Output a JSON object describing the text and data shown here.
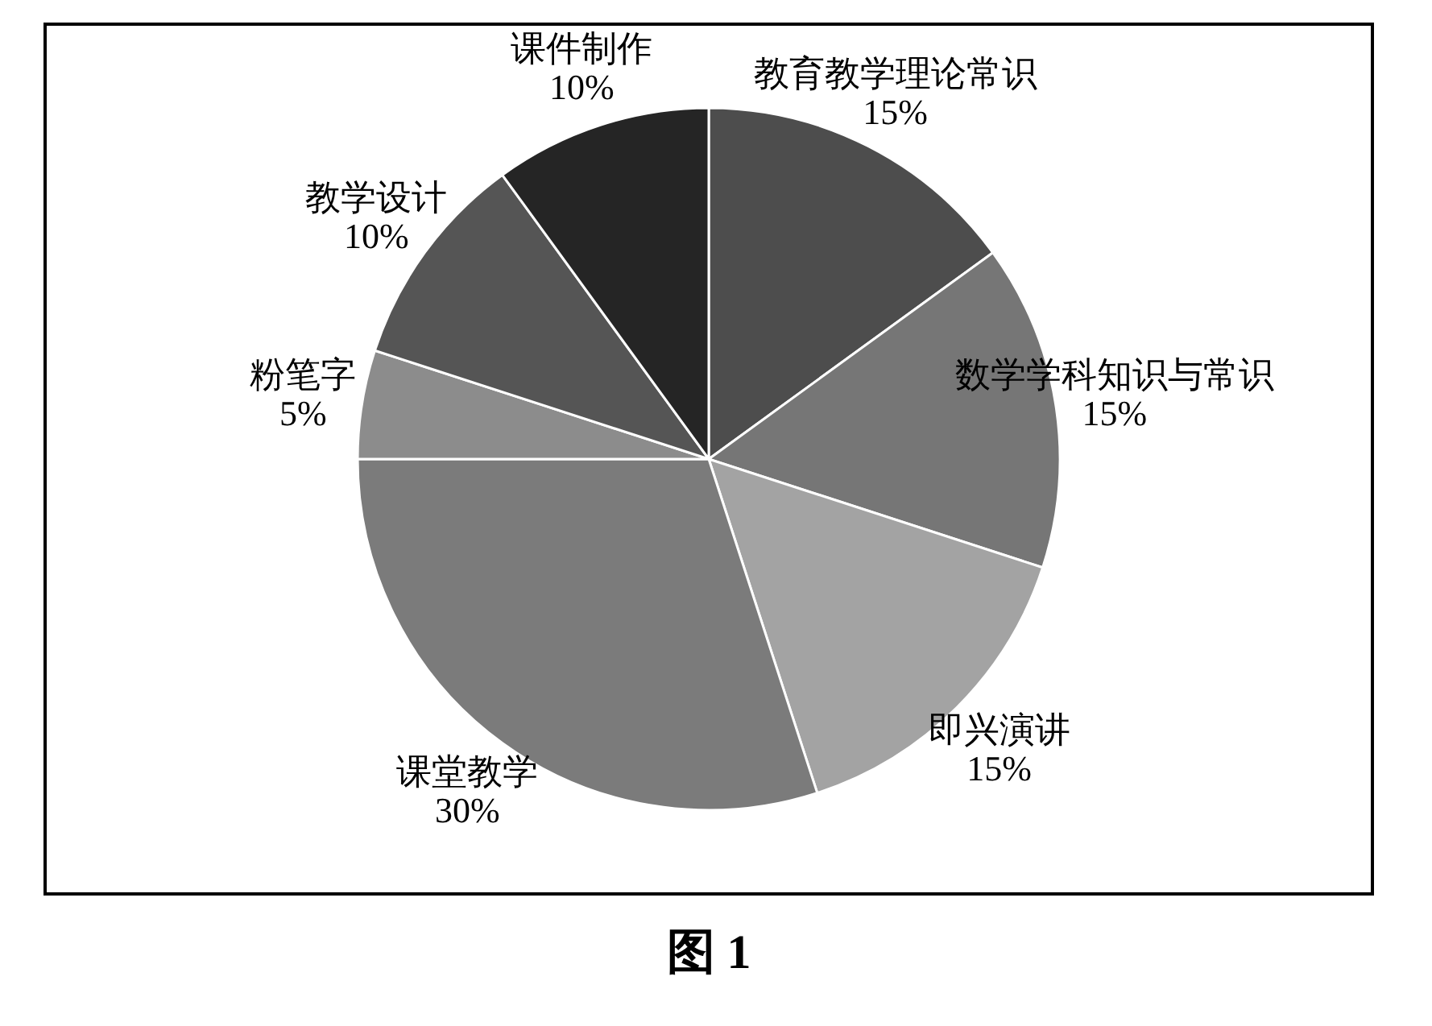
{
  "chart_data": {
    "type": "pie",
    "title": "图 1",
    "categories": [
      "教育教学理论常识",
      "数学学科知识与常识",
      "即兴演讲",
      "课堂教学",
      "粉笔字",
      "教学设计",
      "课件制作"
    ],
    "values": [
      15,
      15,
      15,
      30,
      5,
      10,
      10
    ],
    "value_labels": [
      "15%",
      "15%",
      "15%",
      "30%",
      "5%",
      "10%",
      "10%"
    ],
    "colors": [
      "#4d4d4d",
      "#767676",
      "#a3a3a3",
      "#7b7b7b",
      "#8c8c8c",
      "#555555",
      "#252525"
    ]
  }
}
